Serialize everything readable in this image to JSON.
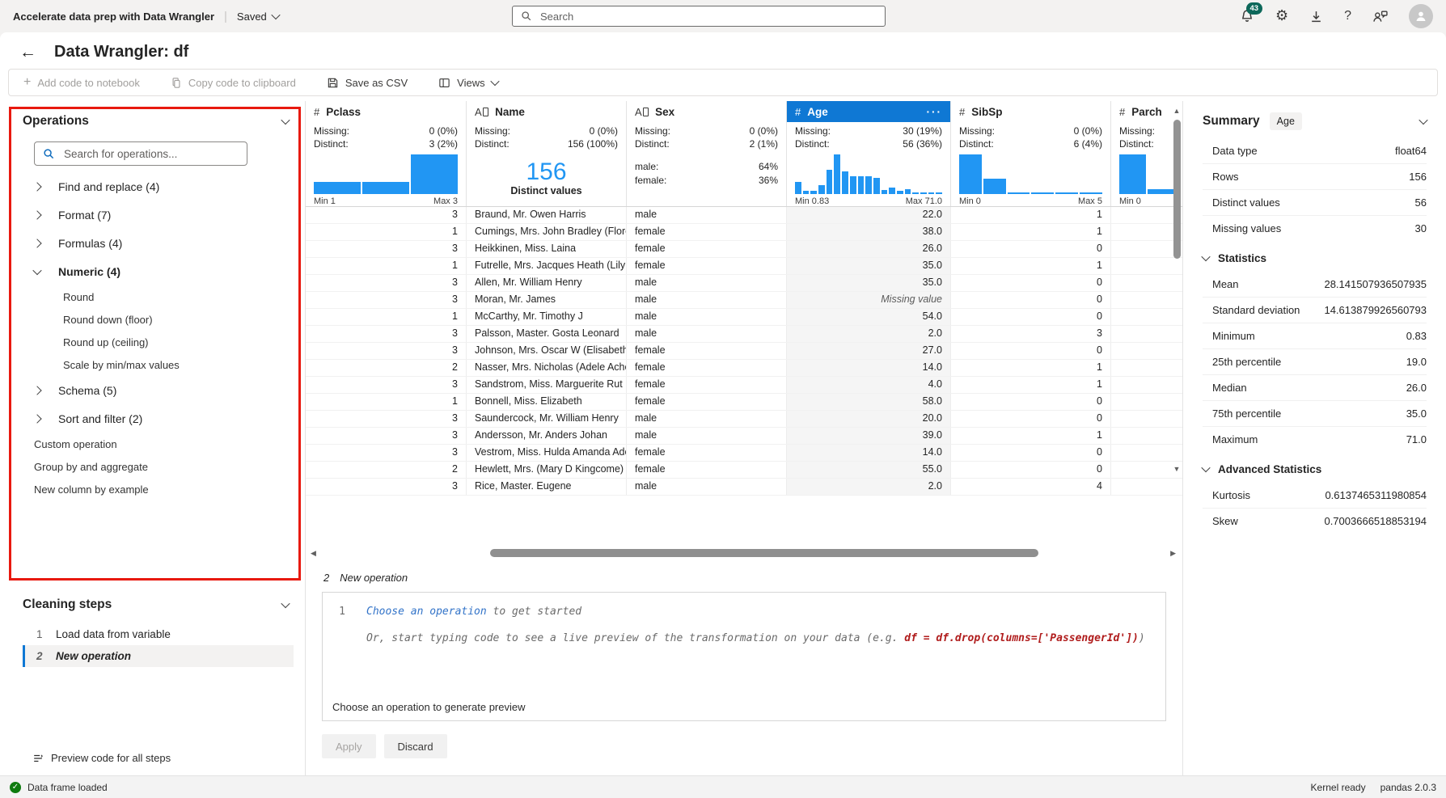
{
  "topbar": {
    "app_title": "Accelerate data prep with Data Wrangler",
    "saved_label": "Saved",
    "search_placeholder": "Search",
    "notification_count": "43"
  },
  "header": {
    "back": "←",
    "title": "Data Wrangler: df"
  },
  "toolbar": {
    "add_code_label": "Add code to notebook",
    "copy_code_label": "Copy code to clipboard",
    "save_csv_label": "Save as CSV",
    "views_label": "Views"
  },
  "operations": {
    "title": "Operations",
    "search_placeholder": "Search for operations...",
    "groups": [
      {
        "label": "Find and replace (4)",
        "expanded": false
      },
      {
        "label": "Format (7)",
        "expanded": false
      },
      {
        "label": "Formulas (4)",
        "expanded": false
      },
      {
        "label": "Numeric (4)",
        "expanded": true,
        "children": [
          "Round",
          "Round down (floor)",
          "Round up (ceiling)",
          "Scale by min/max values"
        ]
      },
      {
        "label": "Schema (5)",
        "expanded": false
      },
      {
        "label": "Sort and filter (2)",
        "expanded": false
      }
    ],
    "items": [
      "Custom operation",
      "Group by and aggregate",
      "New column by example"
    ]
  },
  "cleaning": {
    "title": "Cleaning steps",
    "steps": [
      {
        "num": "1",
        "label": "Load data from variable",
        "active": false
      },
      {
        "num": "2",
        "label": "New operation",
        "active": true
      }
    ],
    "preview_all_label": "Preview code for all steps"
  },
  "grid": {
    "columns": [
      {
        "name": "Pclass",
        "type": "numeric",
        "selected": false,
        "missing": "0 (0%)",
        "distinct": "3 (2%)",
        "viz": "histogram",
        "bars": [
          31,
          31,
          100
        ],
        "min_label": "Min 1",
        "max_label": "Max 3"
      },
      {
        "name": "Name",
        "type": "text",
        "selected": false,
        "missing": "0 (0%)",
        "distinct": "156 (100%)",
        "viz": "bignum",
        "big_value": "156",
        "big_caption": "Distinct values"
      },
      {
        "name": "Sex",
        "type": "text",
        "selected": false,
        "missing": "0 (0%)",
        "distinct": "2 (1%)",
        "viz": "cats",
        "cats": [
          {
            "label": "male:",
            "value": "64%"
          },
          {
            "label": "female:",
            "value": "36%"
          }
        ]
      },
      {
        "name": "Age",
        "type": "numeric",
        "selected": true,
        "missing": "30 (19%)",
        "distinct": "56 (36%)",
        "more": "···",
        "viz": "histogram",
        "bars": [
          30,
          9,
          9,
          22,
          62,
          100,
          58,
          44,
          45,
          45,
          41,
          10,
          17,
          8,
          13,
          5,
          4,
          5,
          5
        ],
        "min_label": "Min 0.83",
        "max_label": "Max 71.0"
      },
      {
        "name": "SibSp",
        "type": "numeric",
        "selected": false,
        "missing": "0 (0%)",
        "distinct": "6 (4%)",
        "viz": "histogram",
        "bars": [
          100,
          38,
          4,
          4,
          4,
          4
        ],
        "min_label": "Min 0",
        "max_label": "Max 5"
      },
      {
        "name": "Parch",
        "type": "numeric",
        "selected": false,
        "missing": "",
        "distinct": "",
        "viz": "histogram",
        "bars": [
          100,
          12
        ],
        "min_label": "Min 0",
        "max_label": ""
      }
    ],
    "rows": [
      [
        "3",
        "Braund, Mr. Owen Harris",
        "male",
        "22.0",
        "1",
        ""
      ],
      [
        "1",
        "Cumings, Mrs. John Bradley (Florenc",
        "female",
        "38.0",
        "1",
        ""
      ],
      [
        "3",
        "Heikkinen, Miss. Laina",
        "female",
        "26.0",
        "0",
        ""
      ],
      [
        "1",
        "Futrelle, Mrs. Jacques Heath (Lily Ma",
        "female",
        "35.0",
        "1",
        ""
      ],
      [
        "3",
        "Allen, Mr. William Henry",
        "male",
        "35.0",
        "0",
        ""
      ],
      [
        "3",
        "Moran, Mr. James",
        "male",
        "Missing value",
        "0",
        ""
      ],
      [
        "1",
        "McCarthy, Mr. Timothy J",
        "male",
        "54.0",
        "0",
        ""
      ],
      [
        "3",
        "Palsson, Master. Gosta Leonard",
        "male",
        "2.0",
        "3",
        ""
      ],
      [
        "3",
        "Johnson, Mrs. Oscar W (Elisabeth Vil",
        "female",
        "27.0",
        "0",
        ""
      ],
      [
        "2",
        "Nasser, Mrs. Nicholas (Adele Achem",
        "female",
        "14.0",
        "1",
        ""
      ],
      [
        "3",
        "Sandstrom, Miss. Marguerite Rut",
        "female",
        "4.0",
        "1",
        ""
      ],
      [
        "1",
        "Bonnell, Miss. Elizabeth",
        "female",
        "58.0",
        "0",
        ""
      ],
      [
        "3",
        "Saundercock, Mr. William Henry",
        "male",
        "20.0",
        "0",
        ""
      ],
      [
        "3",
        "Andersson, Mr. Anders Johan",
        "male",
        "39.0",
        "1",
        ""
      ],
      [
        "3",
        "Vestrom, Miss. Hulda Amanda Adolf",
        "female",
        "14.0",
        "0",
        ""
      ],
      [
        "2",
        "Hewlett, Mrs. (Mary D Kingcome)",
        "female",
        "55.0",
        "0",
        ""
      ],
      [
        "3",
        "Rice, Master. Eugene",
        "male",
        "2.0",
        "4",
        ""
      ]
    ]
  },
  "editor": {
    "step_num": "2",
    "step_name": "New operation",
    "line_number": "1",
    "link_text": "Choose an operation",
    "line1_rest": " to get started",
    "line2_prefix": "Or, start typing code to see a live preview of the transformation on your data (e.g. ",
    "line2_code": "df = df.drop(columns=['PassengerId'])",
    "line2_suffix": ")",
    "preview_hint": "Choose an operation to generate preview",
    "apply_label": "Apply",
    "discard_label": "Discard"
  },
  "summary": {
    "title": "Summary",
    "column_chip": "Age",
    "fields": [
      [
        "Data type",
        "float64"
      ],
      [
        "Rows",
        "156"
      ],
      [
        "Distinct values",
        "56"
      ],
      [
        "Missing values",
        "30"
      ]
    ],
    "statistics_title": "Statistics",
    "statistics": [
      [
        "Mean",
        "28.141507936507935"
      ],
      [
        "Standard deviation",
        "14.613879926560793"
      ],
      [
        "Minimum",
        "0.83"
      ],
      [
        "25th percentile",
        "19.0"
      ],
      [
        "Median",
        "26.0"
      ],
      [
        "75th percentile",
        "35.0"
      ],
      [
        "Maximum",
        "71.0"
      ]
    ],
    "advanced_title": "Advanced Statistics",
    "advanced": [
      [
        "Kurtosis",
        "0.6137465311980854"
      ],
      [
        "Skew",
        "0.7003666518853194"
      ]
    ]
  },
  "statusbar": {
    "message": "Data frame loaded",
    "kernel": "Kernel ready",
    "pandas": "pandas 2.0.3"
  },
  "colors": {
    "accent": "#0f78d4",
    "histogram": "#2196f3",
    "annotation": "#e8190f",
    "status_green": "#0f7b0f",
    "badge": "#0d685a"
  }
}
